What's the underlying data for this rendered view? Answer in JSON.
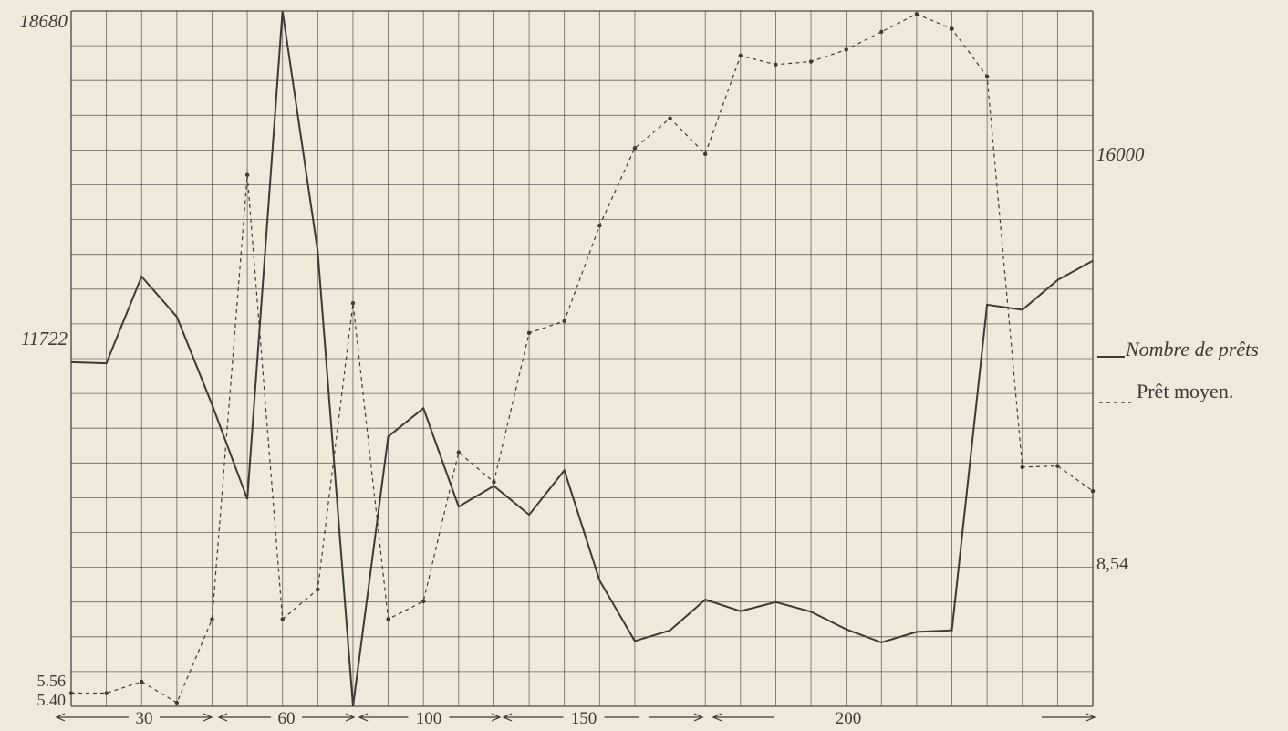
{
  "chart_data": {
    "type": "line",
    "title": "",
    "x_tick_labels": [
      "30",
      "60",
      "100",
      "150",
      "200"
    ],
    "left_axis_labels": [
      {
        "text": "18680",
        "value": 18680
      },
      {
        "text": "11722",
        "value": 11722
      }
    ],
    "left_axis_small_labels": [
      {
        "text": "5.56",
        "value": 5.56
      },
      {
        "text": "5.40",
        "value": 5.4
      }
    ],
    "right_axis_labels": [
      {
        "text": "16000",
        "value": 16000
      },
      {
        "text": "8,54",
        "value": 8.54
      }
    ],
    "grid": true,
    "legend_position": "right",
    "series": [
      {
        "name": "Nombre de prêts",
        "style": "solid",
        "color": "#3a3a3a",
        "values": [
          11722,
          11700,
          13420,
          12620,
          10880,
          9010,
          18680,
          13920,
          4905,
          10250,
          10810,
          8860,
          9270,
          8700,
          9580,
          7400,
          6200,
          6410,
          7020,
          6790,
          6970,
          6780,
          6430,
          6170,
          6380,
          6410,
          12860,
          12760,
          13350,
          13730
        ]
      },
      {
        "name": "Prêt moyen.",
        "style": "dashed",
        "color": "#3a3a3a",
        "values": [
          5.56,
          5.56,
          5.75,
          5.4,
          6.8,
          14.25,
          6.8,
          7.3,
          12.1,
          6.8,
          7.1,
          9.6,
          9.1,
          11.6,
          11.8,
          13.4,
          14.7,
          15.2,
          14.6,
          16.25,
          16.1,
          16.15,
          16.35,
          16.65,
          16.95,
          16.7,
          15.9,
          9.35,
          9.37,
          8.95
        ]
      }
    ]
  },
  "legend": {
    "solid_label": "Nombre de prêts",
    "dashed_label": "Prêt moyen."
  }
}
